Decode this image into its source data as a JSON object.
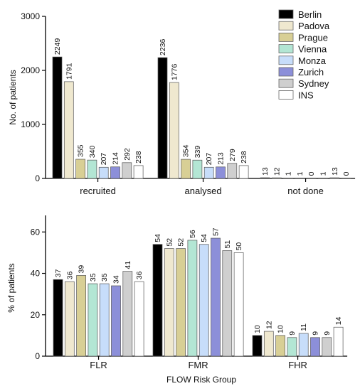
{
  "legend": {
    "placement": "top-right",
    "entries": [
      {
        "name": "Berlin",
        "color": "#000000"
      },
      {
        "name": "Padova",
        "color": "#efe8cf"
      },
      {
        "name": "Prague",
        "color": "#d8cf95"
      },
      {
        "name": "Vienna",
        "color": "#b3e6d4"
      },
      {
        "name": "Monza",
        "color": "#c7ddfa"
      },
      {
        "name": "Zurich",
        "color": "#8c8fd9"
      },
      {
        "name": "Sydney",
        "color": "#cfcfcf"
      },
      {
        "name": "INS",
        "color": "#ffffff"
      }
    ]
  },
  "chart_data": [
    {
      "type": "bar",
      "title": "",
      "xlabel": "",
      "ylabel": "No. of patients",
      "ylim": [
        0,
        3000
      ],
      "yticks": [
        "0",
        "1000",
        "2000",
        "3000"
      ],
      "grid": false,
      "categories": [
        "recruited",
        "analysed",
        "not done"
      ],
      "series": [
        {
          "name": "Berlin",
          "values": [
            2249,
            2236,
            13
          ]
        },
        {
          "name": "Padova",
          "values": [
            1791,
            1776,
            12
          ]
        },
        {
          "name": "Prague",
          "values": [
            355,
            354,
            1
          ]
        },
        {
          "name": "Vienna",
          "values": [
            340,
            339,
            1
          ]
        },
        {
          "name": "Monza",
          "values": [
            207,
            207,
            0
          ]
        },
        {
          "name": "Zurich",
          "values": [
            214,
            213,
            1
          ]
        },
        {
          "name": "Sydney",
          "values": [
            292,
            279,
            13
          ]
        },
        {
          "name": "INS",
          "values": [
            238,
            238,
            0
          ]
        }
      ]
    },
    {
      "type": "bar",
      "title": "",
      "xlabel": "FLOW Risk Group",
      "ylabel": "% of patients",
      "ylim": [
        0,
        68
      ],
      "yticks": [
        "0",
        "20",
        "40",
        "60"
      ],
      "grid": false,
      "categories": [
        "FLR",
        "FMR",
        "FHR"
      ],
      "series": [
        {
          "name": "Berlin",
          "values": [
            37,
            54,
            10
          ]
        },
        {
          "name": "Padova",
          "values": [
            36,
            52,
            12
          ]
        },
        {
          "name": "Prague",
          "values": [
            39,
            52,
            10
          ]
        },
        {
          "name": "Vienna",
          "values": [
            35,
            56,
            9
          ]
        },
        {
          "name": "Monza",
          "values": [
            35,
            54,
            11
          ]
        },
        {
          "name": "Zurich",
          "values": [
            34,
            57,
            9
          ]
        },
        {
          "name": "Sydney",
          "values": [
            41,
            51,
            9
          ]
        },
        {
          "name": "INS",
          "values": [
            36,
            50,
            14
          ]
        }
      ]
    }
  ]
}
